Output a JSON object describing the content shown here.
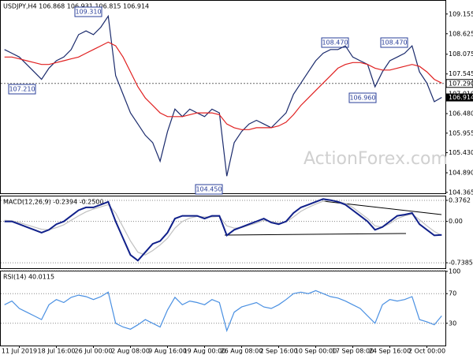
{
  "chart_data": [
    {
      "type": "line",
      "title": "USDJPY,H4 106.868 106.931 106.815 106.914",
      "watermark": "ActionForex.com",
      "ylim": [
        104.34,
        109.51
      ],
      "yticks": [
        109.155,
        108.625,
        108.075,
        107.545,
        {
          "value": 107.01,
          "label": "107.010"
        },
        {
          "value": 106.48,
          "label": "106.480"
        },
        105.955,
        {
          "value": 105.43,
          "label": "105.430"
        },
        {
          "value": 104.89,
          "label": "104.890"
        },
        104.365
      ],
      "marked_level": {
        "value": 107.29,
        "label": "107.290"
      },
      "last": {
        "value": 106.914,
        "label": "106.914"
      },
      "annotations": [
        "109.310",
        "108.470",
        "108.470",
        "107.210",
        "106.960",
        "104.450"
      ],
      "series": [
        {
          "color": "#1a2a6c",
          "values": [
            108.2,
            108.1,
            108.0,
            107.8,
            107.6,
            107.4,
            107.7,
            107.9,
            108.0,
            108.2,
            108.6,
            108.7,
            108.6,
            108.8,
            109.1,
            107.5,
            107.0,
            106.5,
            106.2,
            105.9,
            105.7,
            105.2,
            106.0,
            106.6,
            106.4,
            106.6,
            106.5,
            106.4,
            106.6,
            106.5,
            104.8,
            105.7,
            106.0,
            106.2,
            106.3,
            106.2,
            106.1,
            106.3,
            106.5,
            107.0,
            107.3,
            107.6,
            107.9,
            108.1,
            108.2,
            108.2,
            108.3,
            108.0,
            107.9,
            107.8,
            107.2,
            107.6,
            107.9,
            108.0,
            108.1,
            108.3,
            107.6,
            107.3,
            106.8,
            106.914
          ]
        },
        {
          "color": "#e02020",
          "values": [
            108.0,
            108.0,
            107.95,
            107.9,
            107.85,
            107.8,
            107.8,
            107.85,
            107.9,
            107.95,
            108.0,
            108.1,
            108.2,
            108.3,
            108.4,
            108.3,
            108.0,
            107.6,
            107.2,
            106.9,
            106.7,
            106.5,
            106.4,
            106.4,
            106.4,
            106.45,
            106.5,
            106.5,
            106.5,
            106.45,
            106.2,
            106.1,
            106.05,
            106.05,
            106.1,
            106.1,
            106.1,
            106.15,
            106.25,
            106.45,
            106.7,
            106.9,
            107.1,
            107.3,
            107.5,
            107.7,
            107.8,
            107.85,
            107.85,
            107.8,
            107.7,
            107.65,
            107.65,
            107.7,
            107.75,
            107.8,
            107.75,
            107.6,
            107.4,
            107.3
          ]
        }
      ]
    },
    {
      "type": "line",
      "title": "MACD(12,26,9) -0.2394 -0.2500",
      "ylim": [
        -0.836,
        0.446
      ],
      "yticks": [
        0.3762,
        {
          "value": 0,
          "label": "0.00"
        },
        -0.7385
      ],
      "grid": true,
      "series": [
        {
          "color": "#c0c0c0",
          "values": [
            0.02,
            0.01,
            -0.02,
            -0.06,
            -0.1,
            -0.14,
            -0.15,
            -0.11,
            -0.06,
            0.02,
            0.1,
            0.17,
            0.22,
            0.26,
            0.3,
            0.15,
            -0.1,
            -0.35,
            -0.55,
            -0.6,
            -0.52,
            -0.42,
            -0.3,
            -0.12,
            0.0,
            0.06,
            0.09,
            0.08,
            0.08,
            0.09,
            -0.08,
            -0.12,
            -0.11,
            -0.07,
            -0.03,
            0.02,
            0.0,
            -0.03,
            -0.01,
            0.08,
            0.18,
            0.25,
            0.31,
            0.36,
            0.38,
            0.36,
            0.32,
            0.25,
            0.15,
            0.05,
            -0.08,
            -0.1,
            -0.04,
            0.05,
            0.1,
            0.13,
            0.03,
            -0.08,
            -0.18,
            -0.25
          ]
        },
        {
          "color": "#10208a",
          "values": [
            0.0,
            0.0,
            -0.05,
            -0.1,
            -0.15,
            -0.2,
            -0.15,
            -0.05,
            0.0,
            0.1,
            0.2,
            0.25,
            0.25,
            0.3,
            0.35,
            0.0,
            -0.3,
            -0.6,
            -0.7,
            -0.55,
            -0.4,
            -0.35,
            -0.2,
            0.05,
            0.1,
            0.1,
            0.1,
            0.05,
            0.1,
            0.1,
            -0.25,
            -0.15,
            -0.1,
            -0.05,
            0.0,
            0.05,
            -0.02,
            -0.05,
            0.0,
            0.15,
            0.25,
            0.3,
            0.35,
            0.4,
            0.38,
            0.35,
            0.3,
            0.2,
            0.1,
            0.0,
            -0.15,
            -0.1,
            0.0,
            0.1,
            0.12,
            0.15,
            -0.05,
            -0.15,
            -0.25,
            -0.2394
          ]
        }
      ]
    },
    {
      "type": "line",
      "title": "RSI(14) 40.0115",
      "ylim": [
        0,
        100
      ],
      "yticks": [
        100,
        70,
        30
      ],
      "grid": true,
      "categories": [
        null,
        null,
        "11 Jul 2019",
        null,
        null,
        null,
        null,
        "18 Jul 16:00",
        null,
        null,
        null,
        null,
        "26 Jul 00:00",
        null,
        null,
        null,
        null,
        "2 Aug 08:00",
        null,
        null,
        null,
        null,
        "9 Aug 16:00",
        null,
        null,
        null,
        null,
        "19 Aug 00:00",
        null,
        null,
        null,
        null,
        "26 Aug 08:00",
        null,
        null,
        null,
        null,
        "2 Sep 16:00",
        null,
        null,
        null,
        null,
        "10 Sep 00:00",
        null,
        null,
        null,
        null,
        "17 Sep 08:00",
        null,
        null,
        null,
        null,
        "24 Sep 16:00",
        null,
        null,
        null,
        null,
        "2 Oct 00:00",
        null,
        null
      ],
      "series": [
        {
          "color": "#4a90e2",
          "values": [
            55,
            60,
            50,
            45,
            40,
            35,
            55,
            62,
            58,
            65,
            68,
            66,
            62,
            66,
            72,
            30,
            25,
            22,
            28,
            35,
            30,
            25,
            48,
            65,
            55,
            60,
            58,
            55,
            62,
            58,
            20,
            45,
            52,
            55,
            58,
            52,
            50,
            55,
            62,
            70,
            72,
            70,
            74,
            70,
            66,
            64,
            60,
            55,
            50,
            40,
            30,
            55,
            62,
            60,
            62,
            66,
            35,
            32,
            28,
            40.0115
          ]
        }
      ]
    }
  ]
}
